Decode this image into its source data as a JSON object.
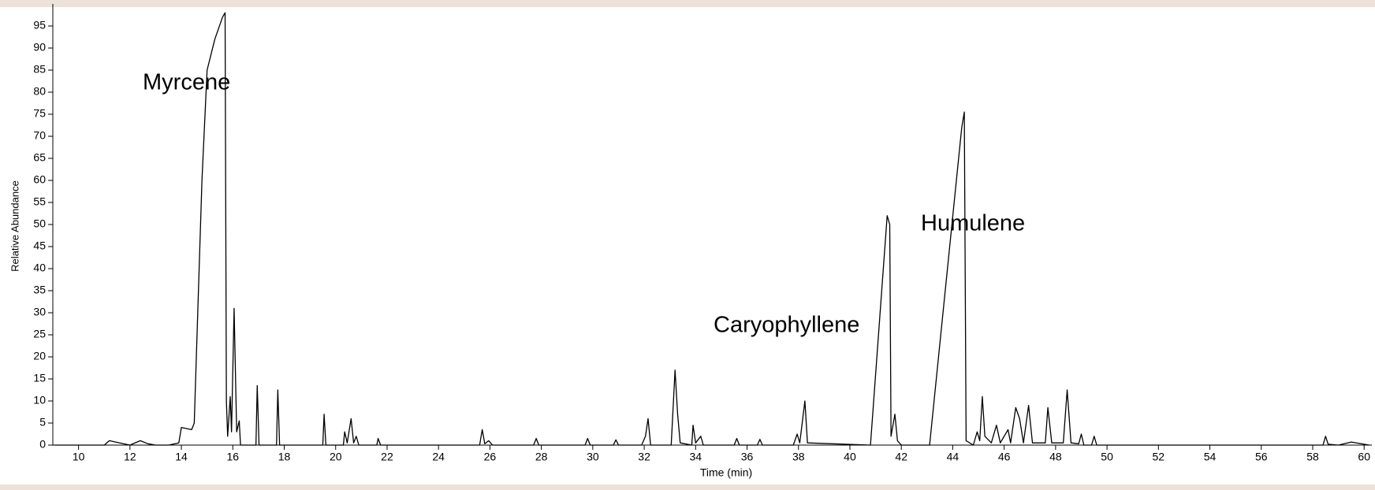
{
  "chart_data": {
    "type": "line",
    "x_label": "Time (min)",
    "y_label": "Relative Abundance",
    "annotations": [
      "Myrcene",
      "Caryophyllene",
      "Humulene"
    ],
    "color": "#000000",
    "xlim": [
      9,
      60.3
    ],
    "ylim": [
      0,
      100
    ],
    "xticks": [
      10,
      12,
      14,
      16,
      18,
      20,
      22,
      24,
      26,
      28,
      30,
      32,
      34,
      36,
      38,
      40,
      42,
      44,
      46,
      48,
      50,
      52,
      54,
      56,
      58,
      60
    ],
    "yticks": [
      0,
      5,
      10,
      15,
      20,
      25,
      30,
      35,
      40,
      45,
      50,
      55,
      60,
      65,
      70,
      75,
      80,
      85,
      90,
      95
    ],
    "x": [
      9.05,
      11,
      11.2,
      11.6,
      12,
      12.4,
      12.7,
      13,
      13.5,
      13.9,
      14,
      14.4,
      14.5,
      14.8,
      15,
      15.3,
      15.6,
      15.7,
      15.75,
      15.8,
      15.9,
      15.95,
      16.05,
      16.15,
      16.25,
      16.3,
      16.9,
      16.95,
      17.02,
      17.7,
      17.75,
      17.82,
      19.5,
      19.55,
      19.62,
      20.3,
      20.35,
      20.45,
      20.6,
      20.7,
      20.8,
      20.9,
      21.6,
      21.65,
      21.75,
      25.6,
      25.7,
      25.8,
      25.95,
      26.1,
      27.7,
      27.8,
      27.9,
      29.7,
      29.8,
      29.9,
      30.8,
      30.9,
      31,
      31.9,
      32.05,
      32.15,
      32.25,
      33.05,
      33.2,
      33.3,
      33.4,
      33.85,
      33.9,
      34,
      34.2,
      34.3,
      35.5,
      35.6,
      35.7,
      36.4,
      36.5,
      36.6,
      37.8,
      37.95,
      38.05,
      38.25,
      38.35,
      40.8,
      41.45,
      41.55,
      41.6,
      41.75,
      41.85,
      42,
      43.1,
      44.35,
      44.45,
      44.52,
      44.8,
      44.95,
      45.05,
      45.15,
      45.25,
      45.5,
      45.7,
      45.85,
      46.15,
      46.25,
      46.45,
      46.6,
      46.75,
      46.95,
      47.1,
      47.6,
      47.7,
      47.85,
      48.3,
      48.45,
      48.6,
      48.9,
      49,
      49.1,
      49.4,
      49.5,
      49.6,
      58.4,
      58.5,
      58.6,
      59,
      59.5,
      60.2
    ],
    "values": [
      0,
      0,
      1,
      0.5,
      0,
      1,
      0.3,
      0,
      0,
      0.5,
      4,
      3.5,
      5,
      60,
      85,
      92,
      97,
      98,
      10,
      2,
      11,
      3,
      31,
      3,
      5.5,
      0,
      0,
      13.5,
      0,
      0,
      12.5,
      0,
      0,
      7,
      0,
      0,
      3,
      0.5,
      6,
      0.5,
      2,
      0,
      0,
      1.5,
      0,
      0,
      3.5,
      0.3,
      1,
      0,
      0,
      1.5,
      0,
      0,
      1.5,
      0,
      0,
      1.2,
      0,
      0,
      2,
      6,
      0,
      0,
      17,
      7,
      0.5,
      0,
      4.5,
      0.5,
      2,
      0,
      0,
      1.5,
      0,
      0,
      1.3,
      0,
      0,
      2.5,
      0.5,
      10,
      0.5,
      0,
      52,
      50,
      2,
      7,
      1,
      0,
      0,
      72,
      75.5,
      1,
      0,
      3,
      1,
      11,
      2,
      0.5,
      4.5,
      0.5,
      3.5,
      0.5,
      8.5,
      6,
      0.5,
      9,
      0.5,
      0.5,
      8.5,
      0.5,
      0.5,
      12.5,
      0.5,
      0.3,
      2.5,
      0,
      0,
      2,
      0,
      0,
      2,
      0.2,
      0,
      0.7,
      0
    ]
  }
}
